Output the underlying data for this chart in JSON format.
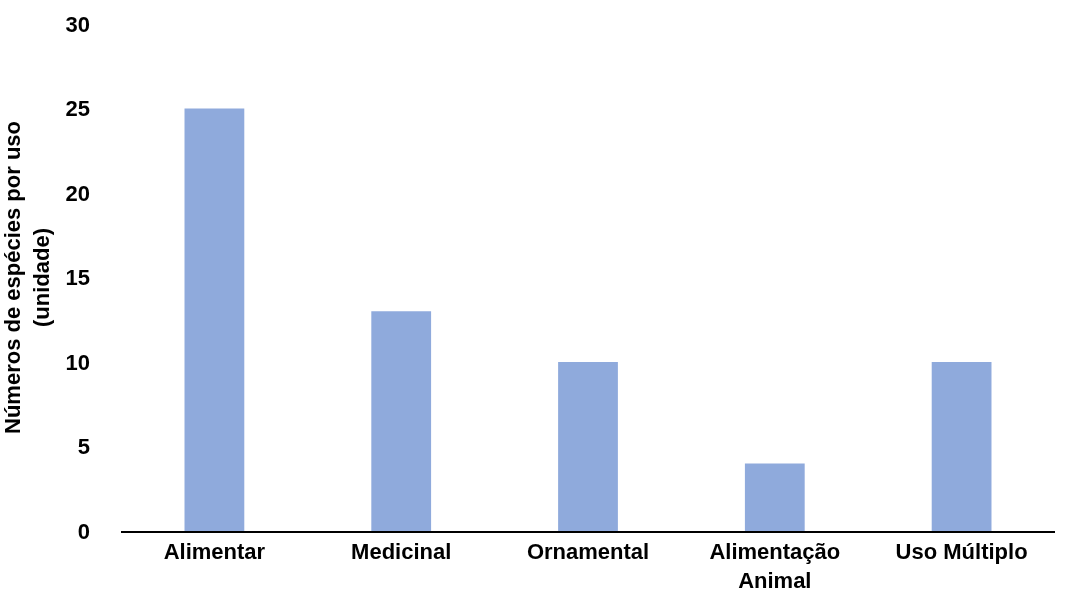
{
  "chart_data": {
    "type": "bar",
    "categories": [
      "Alimentar",
      "Medicinal",
      "Ornamental",
      "Alimentação\nAnimal",
      "Uso Múltiplo"
    ],
    "values": [
      25,
      13,
      10,
      4,
      10
    ],
    "color": "#8faadc",
    "ylabel": "Números de espécies por uso\n(unidade)",
    "ylim": [
      0,
      30
    ],
    "yticks": [
      0,
      5,
      10,
      15,
      20,
      25,
      30
    ]
  }
}
